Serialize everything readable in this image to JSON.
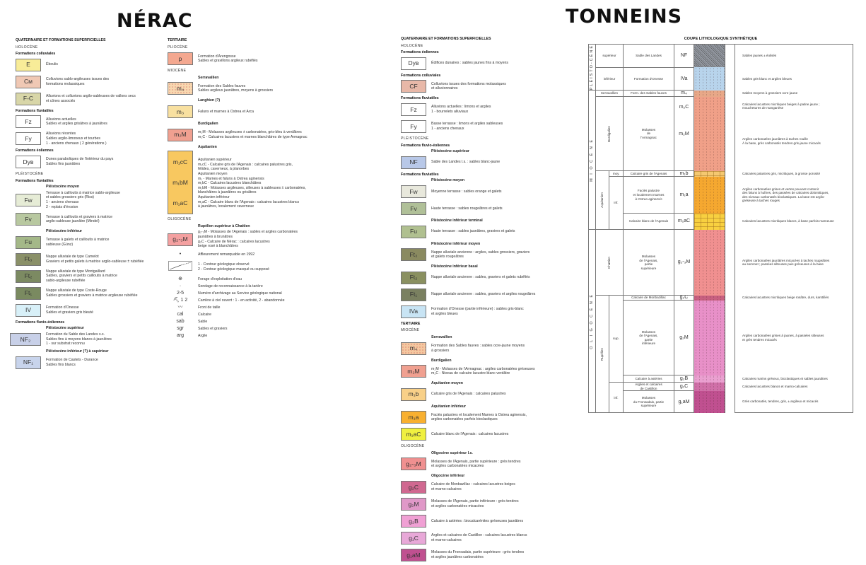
{
  "nerac": {
    "title": "NÉRAC",
    "col1": [
      {
        "t": "h1",
        "text": "QUATERNAIRE ET FORMATIONS SUPERFICIELLES"
      },
      {
        "t": "h2",
        "text": "HOLOCÈNE"
      },
      {
        "t": "h3",
        "text": "Formations colluviales"
      },
      {
        "t": "item",
        "code": "E",
        "color": "#f8ec98",
        "lines": [
          "Éboulis"
        ]
      },
      {
        "t": "item",
        "code": "Cм",
        "color": "#f0c8b4",
        "lines": [
          "Colluvions sablo-argileuses issues des",
          "formations molassiques"
        ]
      },
      {
        "t": "item",
        "code": "F-C",
        "color": "#d8d6a8",
        "lines": [
          "Alluvions et colluvions argilo-sableuses de vallons secs",
          "et cônes associés"
        ]
      },
      {
        "t": "h3",
        "text": "Formations fluviatiles"
      },
      {
        "t": "item",
        "code": "Fz",
        "color": "#ffffff",
        "lines": [
          "Alluvions actuelles",
          "Sables et argiles grisâtres à jaunâtres"
        ]
      },
      {
        "t": "item",
        "code": "Fy",
        "color": "#ffffff",
        "lines": [
          "Alluvions récentes",
          "Sables argilo-limoneux et tourbes",
          "1 - anciens chenaux ( 2 générations )"
        ]
      },
      {
        "t": "h3",
        "text": "Formations éoliennes"
      },
      {
        "t": "item",
        "code": "Dyв",
        "color": "#ffffff",
        "lines": [
          "Dunes paraboliques de l'intérieur du pays",
          "Sables fins jaunâtres"
        ]
      },
      {
        "t": "h2",
        "text": "PLÉISTOCÈNE"
      },
      {
        "t": "h3",
        "text": "Formations fluviatiles"
      },
      {
        "t": "sub",
        "text": "Pléistocène moyen"
      },
      {
        "t": "item",
        "code": "Fw",
        "color": "#e6ecd6",
        "lines": [
          "Terrasse à cailloutis à matrice sablo-argileuse",
          "et sables grossiers gris (Riss)",
          "1 - anciens chenaux",
          "2 - replats d'érosion"
        ]
      },
      {
        "t": "item",
        "code": "Fv",
        "color": "#b8c8a0",
        "lines": [
          "Terrasse à cailloutis et graviers à matrice",
          "argilo-sableuse jaunâtre (Mindel)"
        ]
      },
      {
        "t": "sub",
        "text": "Pléistocène inférieur"
      },
      {
        "t": "item",
        "code": "Fu",
        "color": "#a4b888",
        "lines": [
          "Terrasse à galets et cailloutis à matrice",
          "sableuse (Günz)"
        ]
      },
      {
        "t": "item",
        "code": "Ft₃",
        "color": "#8a9068",
        "lines": [
          "Nappe alluviale de type Camelot",
          "Graviers et petits galets à matrice argilo-sableuse ± rubéfiée"
        ]
      },
      {
        "t": "item",
        "code": "Ft₂",
        "color": "#7c8a62",
        "lines": [
          "Nappe alluviale de type Montgaillard",
          "Sables, graviers et petits cailloutis à matrice",
          "sablo-argileuse rubéfiée"
        ]
      },
      {
        "t": "item",
        "code": "Ft₁",
        "color": "#7a8a60",
        "lines": [
          "Nappe alluviale de type Coste-Rouge",
          "Sables grossiers et graviers à matrice argileuse rubéfiée"
        ]
      },
      {
        "t": "item",
        "code": "IV",
        "color": "#d8f0f8",
        "lines": [
          "Formation d'Onesse",
          "Sables et graviers gris bleuté"
        ]
      },
      {
        "t": "h3",
        "text": "Formations fluvio-éoliennes"
      },
      {
        "t": "sub",
        "text": "Pléistocène supérieur"
      },
      {
        "t": "item",
        "code": "NF₂",
        "color": "#c8d0e8",
        "wide": true,
        "lines": [
          "Formation du Sable des Landes  s.s.",
          "Sables fins à moyens blancs à jaunâtres",
          "1 - sur substrat reconnu"
        ]
      },
      {
        "t": "sub",
        "text": "Pléistocène inférieur (?) à supérieur"
      },
      {
        "t": "item",
        "code": "NF₁",
        "color": "#c8d4ec",
        "lines": [
          "Formation de Castets - Durance",
          "Sables fins blancs"
        ]
      }
    ],
    "col2": [
      {
        "t": "h1",
        "text": "TERTIAIRE"
      },
      {
        "t": "h2",
        "text": "PLIOCÈNE"
      },
      {
        "t": "item",
        "code": "p",
        "color": "#f4a890",
        "lines": [
          "Formation d'Arengosse",
          "Sables et gravillons argileux rubéfiés"
        ]
      },
      {
        "t": "h2",
        "text": "MIOCÈNE"
      },
      {
        "t": "sub",
        "text": "Serravallien"
      },
      {
        "t": "item",
        "code": "m₄",
        "color": "#f8d8b0",
        "dots": true,
        "lines": [
          "Formation des Sables fauves",
          "Sables argileux jaunâtres, moyens à grossiers"
        ]
      },
      {
        "t": "sub",
        "text": "Langhien (?)"
      },
      {
        "t": "item",
        "code": "m₃",
        "color": "#f8e0a0",
        "lines": [
          "Faluns et marnes à Ostrea et Arca"
        ]
      },
      {
        "t": "sub",
        "text": "Burdigalien"
      },
      {
        "t": "item",
        "code": "m₂M",
        "color": "#f0a090",
        "lines": [
          "m₂M - Molasses argileuses ± carbonatées, gris-bleu à verdâtres",
          "m₂C - Calcaires lacustres et marnes blanchâtres de type Armagnac"
        ]
      },
      {
        "t": "sub",
        "text": "Aquitanien"
      },
      {
        "t": "item",
        "tall": true,
        "codes": [
          "m₁cC",
          "m₁bM",
          "m₁aC"
        ],
        "color": "#f8c860",
        "lines": [
          "Aquitanien supérieur",
          "m₁cC - Calcaire gris de l'Agenais : calcaires palustres gris,",
          "fétides, caverneux, à planorbes",
          "Aquitanien moyen",
          "m₁ - Marnes et faluns à Ostrea aginensis",
          "m₁bC - Calcaires lacustres blanchâtres",
          "m₁bM - Molasses argileuses, silteuses à sableuses ± carbonatées,",
          "blanchâtres à jaunâtres ou grisâtres",
          "Aquitanien inférieur",
          "m₁aC - Calcaire blanc de l'Agenais : calcaires lacustres blancs",
          "à jaunâtres, localement caverneux"
        ]
      },
      {
        "t": "h2",
        "text": "OLIGOCÈNE"
      },
      {
        "t": "sub",
        "text": "Rupélien supérieur à Chattien"
      },
      {
        "t": "item",
        "code": "g₂-₃M",
        "color": "#f4a0a0",
        "lines": [
          "g₂-₃M - Molasses de l'Agenais : sables et argiles carbonatées",
          "jaunâtres à brunâtres",
          "g₂C - Calcaire de Nérac : calcaires lacustres",
          "beige rosé à blanchâtres"
        ]
      },
      {
        "t": "sym",
        "glyph": "•",
        "lines": [
          "Affleurement remarquable en 1992"
        ]
      },
      {
        "t": "sym",
        "glyph": "contour",
        "lines": [
          "1 - Contour géologique observé",
          "2 - Contour géologique masqué ou supposé"
        ]
      },
      {
        "t": "sym",
        "glyph": "⊕",
        "lines": [
          "Forage d'exploitation d'eau"
        ]
      },
      {
        "t": "sym",
        "glyph": "·",
        "lines": [
          "Sondage de reconnaissance à la tarière"
        ]
      },
      {
        "t": "sym",
        "glyph": "2-5",
        "lines": [
          "Numéro d'archivage au Service géologique national"
        ]
      },
      {
        "t": "sym",
        "glyph": "⛏ 1  2",
        "lines": [
          "Carrière à ciel ouvert : 1 - en activité, 2 - abandonnée"
        ]
      },
      {
        "t": "sym",
        "glyph": "〰",
        "lines": [
          "Front de taille"
        ]
      },
      {
        "t": "sym",
        "glyph": "cal",
        "lines": [
          "Calcaire"
        ]
      },
      {
        "t": "sym",
        "glyph": "sab",
        "lines": [
          "Sable"
        ]
      },
      {
        "t": "sym",
        "glyph": "sgr",
        "lines": [
          "Sables et graviers"
        ]
      },
      {
        "t": "sym",
        "glyph": "arg",
        "lines": [
          "Argile"
        ]
      }
    ]
  },
  "tonneins": {
    "title": "TONNEINS",
    "legend": [
      {
        "t": "h1",
        "text": "QUATERNAIRE ET FORMATIONS SUPERFICIELLES"
      },
      {
        "t": "h2",
        "text": "HOLOCÈNE"
      },
      {
        "t": "h3",
        "text": "Formations éoliennes"
      },
      {
        "t": "item",
        "code": "Dyв",
        "color": "#ffffff",
        "lines": [
          "Édifices dunaires : sables jaunes fins à moyens"
        ]
      },
      {
        "t": "h3",
        "text": "Formations colluviales"
      },
      {
        "t": "item",
        "code": "CF",
        "color": "#e8b8a8",
        "lines": [
          "Colluvions issues des formations molassiques",
          "et alluvionnaires"
        ]
      },
      {
        "t": "h3",
        "text": "Formations fluviatiles"
      },
      {
        "t": "item",
        "code": "Fz",
        "color": "#ffffff",
        "lines": [
          "Alluvions actuelles : limons et argiles",
          "1 - bourrelets alluviaux"
        ]
      },
      {
        "t": "item",
        "code": "Fy",
        "color": "#ffffff",
        "lines": [
          "Basse terrasse : limons et argiles sableuses",
          "1 - anciens chenaux"
        ]
      },
      {
        "t": "h2",
        "text": "PLÉISTOCÈNE"
      },
      {
        "t": "h3",
        "text": "Formations fluvio-éoliennes"
      },
      {
        "t": "sub",
        "text": "Pléistocène supérieur"
      },
      {
        "t": "item",
        "code": "NF",
        "color": "#b8c8e8",
        "lines": [
          "Sable des Landes l.s. : sables blanc-jaune"
        ]
      },
      {
        "t": "h3",
        "text": "Formations fluviatiles"
      },
      {
        "t": "sub",
        "text": "Pléistocène moyen"
      },
      {
        "t": "item",
        "code": "Fw",
        "color": "#e8e8dc",
        "lines": [
          "Moyenne terrasse : sables orange et galets"
        ]
      },
      {
        "t": "item",
        "code": "Fv",
        "color": "#b0c098",
        "lines": [
          "Haute terrasse : sables rougeâtres et galets"
        ]
      },
      {
        "t": "sub",
        "text": "Pléistocène inférieur terminal"
      },
      {
        "t": "item",
        "code": "Fu",
        "color": "#b0c090",
        "lines": [
          "Haute terrasse : sables jaunâtres, graviers et galets"
        ]
      },
      {
        "t": "sub",
        "text": "Pléistocène inférieur moyen"
      },
      {
        "t": "item",
        "code": "Ft₃",
        "color": "#8a8a60",
        "lines": [
          "Nappe alluviale ancienne : argiles, sables grossiers, graviers",
          "et galets rougeâtres"
        ]
      },
      {
        "t": "sub",
        "text": "Pléistocène inférieur basal"
      },
      {
        "t": "item",
        "code": "Ft₂",
        "color": "#8a9060",
        "lines": [
          "Nappe alluviale ancienne : sables, graviers et galets rubéfiés"
        ]
      },
      {
        "t": "item",
        "code": "Ft₁",
        "color": "#7a8060",
        "lines": [
          "Nappe alluviale ancienne : sables, graviers et argiles rougeâtres"
        ]
      },
      {
        "t": "item",
        "code": "IVa",
        "color": "#c8e4f4",
        "lines": [
          "Formation d'Onesse (partie inférieure) : sables gris-blanc",
          "et argiles bleues"
        ]
      },
      {
        "t": "h1",
        "text": "TERTIAIRE"
      },
      {
        "t": "h2",
        "text": "MIOCÈNE"
      },
      {
        "t": "sub",
        "text": "Serravallien"
      },
      {
        "t": "item",
        "code": "m₄",
        "color": "#f4c8a0",
        "dots": true,
        "lines": [
          "Formation des Sables fauves : sables ocre-jaune moyens",
          "à grossiers"
        ]
      },
      {
        "t": "sub",
        "text": "Burdigalien"
      },
      {
        "t": "item",
        "code": "m₂M",
        "color": "#f0a090",
        "lines": [
          "m₂M - Molasses de l'Armagnac : argiles carbonatées gréseuses",
          "m₂C - Niveau de calcaire lacustre blanc verdâtre"
        ]
      },
      {
        "t": "sub",
        "text": "Aquitanien moyen"
      },
      {
        "t": "item",
        "code": "m₁b",
        "color": "#f8d088",
        "lines": [
          "Calcaire gris de l'Agenais : calcaires palustres"
        ]
      },
      {
        "t": "sub",
        "text": "Aquitanien inférieur"
      },
      {
        "t": "item",
        "code": "m₁a",
        "color": "#f8b030",
        "lines": [
          "Faciès palustres et localement Marnes à Ostrea aginensis,",
          "argiles carbonatées parfois bioclastiques"
        ]
      },
      {
        "t": "item",
        "code": "m₁aC",
        "color": "#f0f040",
        "lines": [
          "Calcaire blanc de l'Agenais : calcaires lacustres"
        ]
      },
      {
        "t": "h2",
        "text": "OLIGOCÈNE"
      },
      {
        "t": "sub",
        "text": "Oligocène supérieur l.s."
      },
      {
        "t": "item",
        "code": "g₂-₃M",
        "color": "#f09090",
        "lines": [
          "Molasses de l'Agenais, partie supérieure : grès tendres",
          "et argiles carbonatées micacées"
        ]
      },
      {
        "t": "sub",
        "text": "Oligocène inférieur"
      },
      {
        "t": "item",
        "code": "g₂C",
        "color": "#d06890",
        "lines": [
          "Calcaire de Monbazillac : calcaires lacustres beiges",
          "et marno-calcaires"
        ]
      },
      {
        "t": "item",
        "code": "g₂M",
        "color": "#e098c8",
        "lines": [
          "Molasses de l'Agenais, partie inférieure : grès tendres",
          "et argiles carbonatées micacées"
        ]
      },
      {
        "t": "item",
        "code": "g₂B",
        "color": "#f0a0d4",
        "lines": [
          "Calcaire à astéries : biocalcarénites gréseuses jaunâtres"
        ]
      },
      {
        "t": "item",
        "code": "g₁C",
        "color": "#e8a8d8",
        "lines": [
          "Argiles et calcaires de Castillon : calcaires lacustres blancs",
          "et marno-calcaires"
        ]
      },
      {
        "t": "item",
        "code": "g₁aM",
        "color": "#c05090",
        "lines": [
          "Molasses du Fronsadais, partie supérieure : grès tendres",
          "et argiles jaunâtres carbonatées"
        ]
      }
    ],
    "column": {
      "title": "COUPE LITHOLOGIQUE SYNTHÉTIQUE",
      "eras": {
        "pleisto": "PLÉISTO-CÈNE",
        "miocene": "M I O C È N E",
        "oligocene": "O L I G O C È N E"
      },
      "stages": {
        "burdigalien": "Burdigalien",
        "aquitanien": "Aquitanien",
        "chattien": "Chattien",
        "rupelien": "Rupélien"
      },
      "rows": [
        {
          "sub": "supérieur",
          "formation": "Sable des Landes",
          "notation": "NF",
          "color": "#9aa0aa",
          "desc": [
            "Sables jaunes ± éolisés"
          ]
        },
        {
          "sub": "inférieur",
          "formation": "Formation d'Onesse",
          "notation": "IVa",
          "color": "#b8d4ec",
          "desc": [
            "Sables gris-blanc et argiles bleues"
          ]
        },
        {
          "sub": "Serravallien",
          "formation": "Form. des Sables fauves",
          "notation": "m₄",
          "color": "#e8a888",
          "desc": [
            "Sables moyens à grossiers ocre-jaune"
          ]
        },
        {
          "formation": "Molasses\nde\nl'Armagnac",
          "notation": "m₂C",
          "notation2": "m₂M",
          "color": "#f0a088",
          "desc": [
            "Calcaires lacustres micritiques beiges à patine jaune ;",
            "mouchetures de manganèse"
          ],
          "desc2": [
            "Argiles carbonatées jaunâtres à taches rouille",
            "À la base, grès carbonatés tendres gris-jaune micacés"
          ]
        },
        {
          "sub": "moy.",
          "formation": "Calcaire gris de l'Agenais",
          "notation": "m₁b",
          "color": "#f5c870",
          "desc": [
            "Calcaires palustres gris, micritiques, à grosse porosité"
          ]
        },
        {
          "sub": "inf.",
          "formation": "Faciès palustre\net localement marnes\nà Ostrea aginensis",
          "notation": "m₁a",
          "color": "#f5a830",
          "desc": [
            "Argiles carbonatées grises et vertes pouvant contenir",
            "des faluns à huîtres, des passées de calcaires dolomitiques,",
            "des niveaux carbonatés bioclastiques. La base est argilo-",
            "gréseuse à taches rouges"
          ]
        },
        {
          "formation": "Calcaire blanc de l'Agenais",
          "notation": "m₁aC",
          "color": "#f8d040",
          "desc": [
            "Calcaires lacustres micritiques blancs, à base parfois marneuse"
          ]
        },
        {
          "formation": "Molasses\nde l'Agenais,\npartie\nsupérieure",
          "notation": "g₂-₃M",
          "color": "#f09090",
          "desc": [
            "Argiles carbonatées jaunâtres micacées à taches rougeâtres",
            "au sommet ; passées silteuses puis gréseuses à la base"
          ]
        },
        {
          "sub": "sup.",
          "formation": "Calcaire de Monbazillac",
          "notation": "g₂C",
          "color": "#c86080",
          "desc": [
            "Calcaires lacustres micritiques beige rosâtre, durs, karstifiés"
          ]
        },
        {
          "formation": "Molasses\nde l'Agenais,\npartie\ninférieure",
          "notation": "g₂M",
          "color": "#e890c8",
          "desc": [
            "Argiles carbonatées grises à jaunes, à passées silteuses",
            "et grès tendres micacés"
          ]
        },
        {
          "formation": "Calcaire à astéries",
          "notation": "g₂B",
          "color": "#eaa0d0",
          "desc": [
            "Calcaires marins gréseux, bioclastiques et sables jaunâtres"
          ]
        },
        {
          "sub": "inf.",
          "formation": "Argiles et calcaires\nde Castillon",
          "notation": "g₁C",
          "color": "#d070a8",
          "desc": [
            "Calcaires lacustres blancs et marno-calcaires"
          ]
        },
        {
          "formation": "Molasses\ndu Fronsadais, partie\nsupérieure",
          "notation": "g₁aM",
          "color": "#c05090",
          "desc": [
            "Grès carbonatés, tendres, gris, ± argileux et micacés"
          ]
        }
      ]
    }
  }
}
